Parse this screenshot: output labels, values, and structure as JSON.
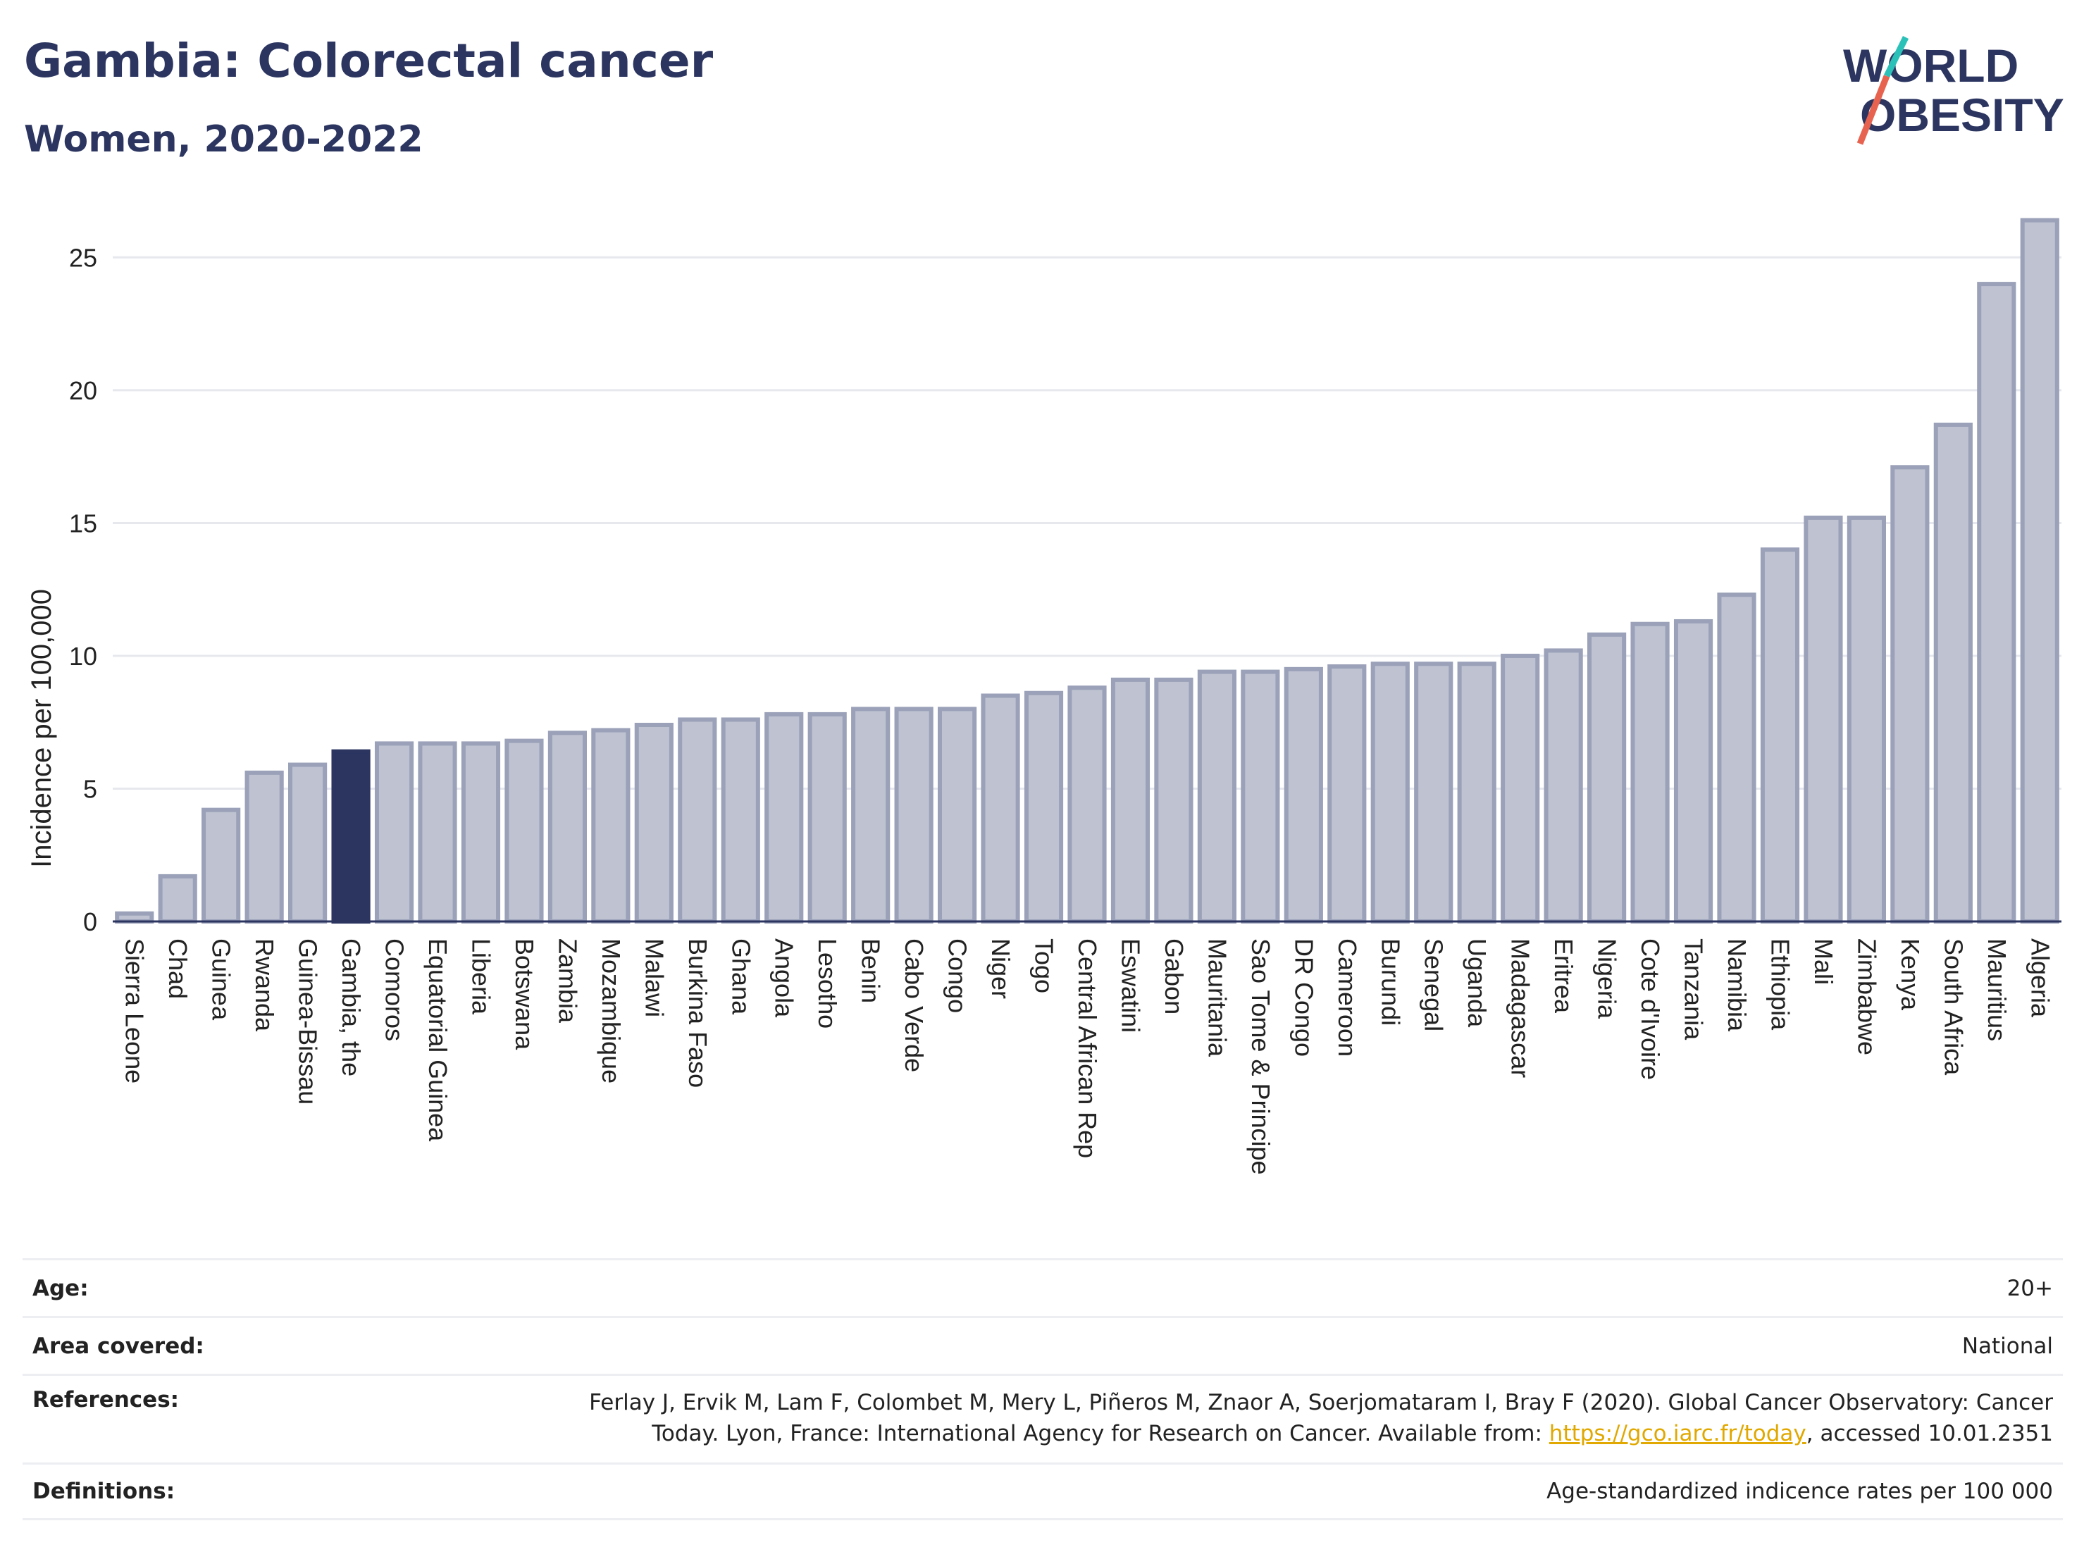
{
  "header": {
    "title": "Gambia: Colorectal cancer",
    "subtitle": "Women, 2020-2022"
  },
  "logo": {
    "line1": "WORLD",
    "line2": "OBESITY",
    "accent_colors": [
      "#2cc1b8",
      "#e8634f"
    ]
  },
  "colors": {
    "highlight": "#2b3560",
    "bar_fill": "#bec2d1",
    "bar_stroke": "#9aa1b8",
    "grid": "#e6e8ee"
  },
  "chart_data": {
    "type": "bar",
    "ylabel": "Incidence per 100,000",
    "ylim": [
      0,
      27
    ],
    "yticks": [
      0,
      5,
      10,
      15,
      20,
      25
    ],
    "highlight": "Gambia, the",
    "categories": [
      "Sierra Leone",
      "Chad",
      "Guinea",
      "Rwanda",
      "Guinea-Bissau",
      "Gambia, the",
      "Comoros",
      "Equatorial Guinea",
      "Liberia",
      "Botswana",
      "Zambia",
      "Mozambique",
      "Malawi",
      "Burkina Faso",
      "Ghana",
      "Angola",
      "Lesotho",
      "Benin",
      "Cabo Verde",
      "Congo",
      "Niger",
      "Togo",
      "Central African Rep",
      "Eswatini",
      "Gabon",
      "Mauritania",
      "Sao Tome & Principe",
      "DR Congo",
      "Cameroon",
      "Burundi",
      "Senegal",
      "Uganda",
      "Madagascar",
      "Eritrea",
      "Nigeria",
      "Cote d'Ivoire",
      "Tanzania",
      "Namibia",
      "Ethiopia",
      "Mali",
      "Zimbabwe",
      "Kenya",
      "South Africa",
      "Mauritius",
      "Algeria"
    ],
    "values": [
      0.3,
      1.7,
      4.2,
      5.6,
      5.9,
      6.4,
      6.7,
      6.7,
      6.7,
      6.8,
      7.1,
      7.2,
      7.4,
      7.6,
      7.6,
      7.8,
      7.8,
      8.0,
      8.0,
      8.0,
      8.5,
      8.6,
      8.8,
      9.1,
      9.1,
      9.4,
      9.4,
      9.5,
      9.6,
      9.7,
      9.7,
      9.7,
      10.0,
      10.2,
      10.8,
      11.2,
      11.3,
      12.3,
      14.0,
      15.2,
      15.2,
      17.1,
      18.7,
      24.0,
      26.4
    ]
  },
  "meta": {
    "age_label": "Age:",
    "age_value": "20+",
    "area_label": "Area covered:",
    "area_value": "National",
    "references_label": "References:",
    "references_line1": "Ferlay J, Ervik M, Lam F, Colombet M, Mery L, Piñeros M, Znaor A, Soerjomataram I, Bray F (2020). Global Cancer Observatory: Cancer",
    "references_line2_pre": "Today. Lyon, France: International Agency for Research on Cancer. Available from: ",
    "references_link": "https://gco.iarc.fr/today",
    "references_line2_post": ", accessed 10.01.2351",
    "definitions_label": "Definitions:",
    "definitions_value": "Age-standardized indicence rates per 100 000"
  }
}
